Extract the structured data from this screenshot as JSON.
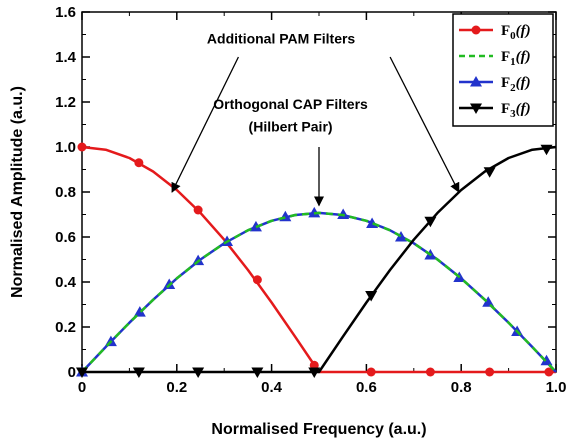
{
  "chart_data": {
    "type": "line",
    "xlabel": "Normalised Frequency (a.u.)",
    "ylabel": "Normalised Amplitude (a.u.)",
    "xlim": [
      0,
      1
    ],
    "ylim": [
      0,
      1.6
    ],
    "xticks": [
      "0",
      "0.2",
      "0.4",
      "0.6",
      "0.8",
      "1.0"
    ],
    "yticks": [
      "0",
      "0.2",
      "0.4",
      "0.6",
      "0.8",
      "1.0",
      "1.2",
      "1.4",
      "1.6"
    ],
    "grid": false,
    "legend_position": "top-right",
    "series": [
      {
        "name": "F0(f)",
        "legend_main": "F",
        "legend_sub": "0",
        "legend_tail": "(f)",
        "color": "#e41a1c",
        "dash": "solid",
        "marker": "circle",
        "x": [
          0,
          0.05,
          0.1,
          0.15,
          0.2,
          0.25,
          0.3,
          0.35,
          0.4,
          0.45,
          0.5,
          0.55,
          0.6,
          0.65,
          0.7,
          0.75,
          0.8,
          0.85,
          0.9,
          0.95,
          1.0
        ],
        "y": [
          1.0,
          0.988,
          0.951,
          0.891,
          0.809,
          0.707,
          0.588,
          0.454,
          0.309,
          0.156,
          0.0,
          0,
          0,
          0,
          0,
          0,
          0,
          0,
          0,
          0,
          0
        ],
        "marker_x": [
          0,
          0.12,
          0.245,
          0.37,
          0.49,
          0.61,
          0.735,
          0.86,
          0.985
        ],
        "marker_y": [
          1.0,
          0.93,
          0.72,
          0.41,
          0.03,
          0,
          0,
          0,
          0
        ]
      },
      {
        "name": "F1(f)",
        "legend_main": "F",
        "legend_sub": "1",
        "legend_tail": "(f)",
        "color": "#22bb22",
        "dash": "dashed",
        "marker": "none",
        "x": [
          0,
          0.05,
          0.1,
          0.15,
          0.2,
          0.25,
          0.3,
          0.35,
          0.4,
          0.45,
          0.5,
          0.55,
          0.6,
          0.65,
          0.7,
          0.75,
          0.8,
          0.85,
          0.9,
          0.95,
          1.0
        ],
        "y": [
          0,
          0.111,
          0.219,
          0.321,
          0.416,
          0.5,
          0.572,
          0.63,
          0.672,
          0.698,
          0.707,
          0.698,
          0.672,
          0.63,
          0.572,
          0.5,
          0.416,
          0.321,
          0.219,
          0.111,
          0
        ]
      },
      {
        "name": "F2(f)",
        "legend_main": "F",
        "legend_sub": "2",
        "legend_tail": "(f)",
        "color": "#2233cc",
        "dash": "solid",
        "marker": "triangle-up",
        "x": [
          0,
          0.05,
          0.1,
          0.15,
          0.2,
          0.25,
          0.3,
          0.35,
          0.4,
          0.45,
          0.5,
          0.55,
          0.6,
          0.65,
          0.7,
          0.75,
          0.8,
          0.85,
          0.9,
          0.95,
          1.0
        ],
        "y": [
          0,
          0.111,
          0.219,
          0.321,
          0.416,
          0.5,
          0.572,
          0.63,
          0.672,
          0.698,
          0.707,
          0.698,
          0.672,
          0.63,
          0.572,
          0.5,
          0.416,
          0.321,
          0.219,
          0.111,
          0
        ],
        "marker_x": [
          0,
          0.061,
          0.122,
          0.184,
          0.245,
          0.306,
          0.367,
          0.429,
          0.49,
          0.551,
          0.612,
          0.673,
          0.735,
          0.796,
          0.857,
          0.918,
          0.98
        ],
        "marker_y": [
          0,
          0.135,
          0.266,
          0.389,
          0.495,
          0.58,
          0.645,
          0.69,
          0.707,
          0.7,
          0.66,
          0.6,
          0.52,
          0.42,
          0.31,
          0.18,
          0.05
        ]
      },
      {
        "name": "F3(f)",
        "legend_main": "F",
        "legend_sub": "3",
        "legend_tail": "(f)",
        "color": "#000000",
        "dash": "solid",
        "marker": "triangle-down",
        "x": [
          0,
          0.05,
          0.1,
          0.15,
          0.2,
          0.25,
          0.3,
          0.35,
          0.4,
          0.45,
          0.5,
          0.55,
          0.6,
          0.65,
          0.7,
          0.75,
          0.8,
          0.85,
          0.9,
          0.95,
          1.0
        ],
        "y": [
          0,
          0,
          0,
          0,
          0,
          0,
          0,
          0,
          0,
          0,
          0.0,
          0.156,
          0.309,
          0.454,
          0.588,
          0.707,
          0.809,
          0.891,
          0.951,
          0.988,
          1.0
        ],
        "marker_x": [
          0,
          0.12,
          0.245,
          0.37,
          0.49,
          0.61,
          0.735,
          0.86,
          0.98
        ],
        "marker_y": [
          0,
          0,
          0,
          0,
          0,
          0.34,
          0.67,
          0.89,
          0.99
        ]
      }
    ],
    "annotations": [
      {
        "id": "pam",
        "text": "Additional PAM Filters",
        "text_x": 0.42,
        "text_y": 1.46,
        "arrows": [
          {
            "from_x": 0.33,
            "from_y": 1.4,
            "to_x": 0.19,
            "to_y": 0.8
          },
          {
            "from_x": 0.65,
            "from_y": 1.4,
            "to_x": 0.795,
            "to_y": 0.8
          }
        ]
      },
      {
        "id": "cap",
        "text": "Orthogonal CAP Filters",
        "text2": "(Hilbert Pair)",
        "text_x": 0.44,
        "text_y": 1.17,
        "text2_y": 1.07,
        "arrows": [
          {
            "from_x": 0.5,
            "from_y": 1.0,
            "to_x": 0.5,
            "to_y": 0.74
          }
        ]
      }
    ]
  }
}
